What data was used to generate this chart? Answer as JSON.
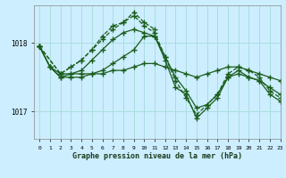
{
  "xlabel": "Graphe pression niveau de la mer (hPa)",
  "bg_color": "#cceeff",
  "grid_color": "#aadddd",
  "line_color": "#1a5c1a",
  "xlim": [
    -0.5,
    23
  ],
  "ylim": [
    1016.6,
    1018.55
  ],
  "yticks": [
    1017,
    1018
  ],
  "xticks": [
    0,
    1,
    2,
    3,
    4,
    5,
    6,
    7,
    8,
    9,
    10,
    11,
    12,
    13,
    14,
    15,
    16,
    17,
    18,
    19,
    20,
    21,
    22,
    23
  ],
  "series": [
    {
      "x": [
        0,
        1,
        2,
        3,
        4,
        5,
        6,
        7,
        8,
        9,
        10,
        11,
        12,
        13,
        14,
        15,
        16,
        17,
        18,
        19,
        20,
        21,
        22,
        23
      ],
      "y": [
        1017.95,
        1017.65,
        1017.55,
        1017.55,
        1017.55,
        1017.55,
        1017.55,
        1017.6,
        1017.6,
        1017.65,
        1017.7,
        1017.7,
        1017.65,
        1017.6,
        1017.55,
        1017.5,
        1017.55,
        1017.6,
        1017.65,
        1017.65,
        1017.6,
        1017.55,
        1017.5,
        1017.45
      ],
      "style": "-",
      "marker": "D",
      "markersize": 2.5
    },
    {
      "x": [
        0,
        1,
        2,
        3,
        4,
        5,
        6,
        7,
        8,
        9,
        10,
        11,
        12,
        13,
        14,
        15,
        16,
        17,
        18,
        19,
        20,
        21,
        22,
        23
      ],
      "y": [
        1017.95,
        1017.65,
        1017.5,
        1017.5,
        1017.5,
        1017.55,
        1017.6,
        1017.7,
        1017.8,
        1017.9,
        1018.1,
        1018.1,
        1017.8,
        1017.5,
        1017.3,
        1017.05,
        1017.1,
        1017.25,
        1017.5,
        1017.55,
        1017.5,
        1017.45,
        1017.35,
        1017.25
      ],
      "style": "-",
      "marker": "D",
      "markersize": 2.5
    },
    {
      "x": [
        0,
        1,
        2,
        3,
        4,
        5,
        6,
        7,
        8,
        9,
        10,
        11,
        12,
        13,
        14,
        15,
        16,
        17,
        18,
        19,
        20,
        21,
        22,
        23
      ],
      "y": [
        1017.95,
        1017.65,
        1017.5,
        1017.55,
        1017.6,
        1017.75,
        1017.9,
        1018.05,
        1018.15,
        1018.2,
        1018.15,
        1018.1,
        1017.75,
        1017.35,
        1017.25,
        1016.9,
        1017.05,
        1017.2,
        1017.5,
        1017.6,
        1017.5,
        1017.45,
        1017.25,
        1017.15
      ],
      "style": "-",
      "marker": "D",
      "markersize": 2.5
    },
    {
      "x": [
        0,
        2,
        3,
        4,
        5,
        6,
        7,
        8,
        9,
        10,
        11,
        12,
        13,
        14,
        15,
        16,
        17,
        18,
        19,
        20,
        21,
        22,
        23
      ],
      "y": [
        1017.95,
        1017.55,
        1017.65,
        1017.75,
        1017.9,
        1018.05,
        1018.2,
        1018.3,
        1018.4,
        1018.25,
        1018.15,
        1017.8,
        1017.45,
        1017.2,
        1016.95,
        1017.1,
        1017.25,
        1017.55,
        1017.65,
        1017.6,
        1017.5,
        1017.3,
        1017.2
      ],
      "style": "--",
      "marker": "D",
      "markersize": 2.5
    },
    {
      "x": [
        0,
        2,
        4,
        5,
        6,
        7,
        8,
        9,
        10,
        11
      ],
      "y": [
        1017.95,
        1017.55,
        1017.75,
        1017.9,
        1018.1,
        1018.25,
        1018.3,
        1018.45,
        1018.3,
        1018.2
      ],
      "style": "--",
      "marker": "D",
      "markersize": 2.5
    }
  ]
}
